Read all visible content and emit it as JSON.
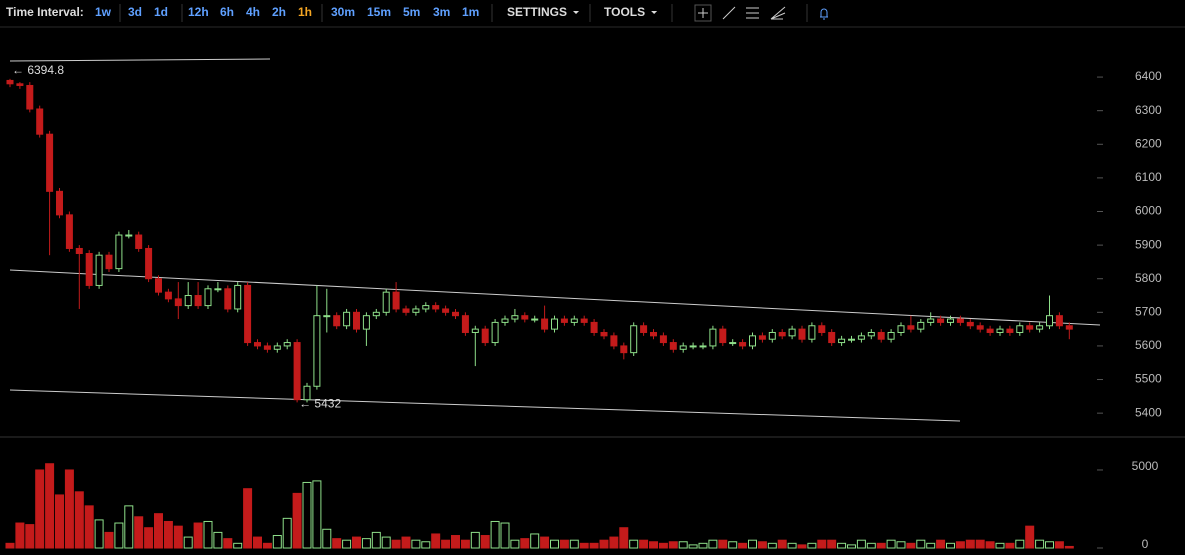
{
  "toolbar": {
    "label": "Time Interval:",
    "intervals": [
      "1w",
      "3d",
      "1d",
      "12h",
      "6h",
      "4h",
      "2h",
      "1h",
      "30m",
      "15m",
      "5m",
      "3m",
      "1m"
    ],
    "active": "1h",
    "menus": [
      "SETTINGS",
      "TOOLS"
    ]
  },
  "chart_data": {
    "type": "candlestick",
    "annotations": [
      "← 6394.8",
      "← 5432"
    ],
    "up_color": "#8fe08a",
    "down_color": "#c41b1b",
    "ylim": [
      5329,
      6549
    ],
    "yticks": [
      5400,
      5500,
      5600,
      5700,
      5800,
      5900,
      6000,
      6100,
      6200,
      6300,
      6400
    ],
    "volume_lim": [
      -320,
      6920
    ],
    "volume_ticks": [
      0,
      5000
    ],
    "open": [
      6390,
      6380,
      6375,
      6305,
      6230,
      6060,
      5990,
      5890,
      5875,
      5780,
      5870,
      5830,
      5930,
      5930,
      5890,
      5800,
      5760,
      5740,
      5720,
      5750,
      5720,
      5770,
      5770,
      5710,
      5780,
      5610,
      5600,
      5590,
      5600,
      5610,
      5440,
      5480,
      5690,
      5690,
      5660,
      5700,
      5650,
      5690,
      5700,
      5760,
      5710,
      5700,
      5710,
      5720,
      5710,
      5700,
      5690,
      5640,
      5650,
      5610,
      5670,
      5680,
      5690,
      5680,
      5680,
      5650,
      5680,
      5670,
      5680,
      5670,
      5640,
      5630,
      5600,
      5580,
      5660,
      5640,
      5630,
      5610,
      5590,
      5600,
      5600,
      5600,
      5650,
      5610,
      5610,
      5600,
      5630,
      5620,
      5640,
      5630,
      5650,
      5620,
      5660,
      5640,
      5610,
      5620,
      5620,
      5630,
      5640,
      5620,
      5640,
      5660,
      5650,
      5670,
      5680,
      5670,
      5680,
      5670,
      5660,
      5650,
      5640,
      5650,
      5640,
      5660,
      5650,
      5660,
      5690,
      5660
    ],
    "high": [
      6394.8,
      6385,
      6385,
      6315,
      6240,
      6070,
      6000,
      5900,
      5885,
      5880,
      5880,
      5940,
      5945,
      5940,
      5900,
      5810,
      5770,
      5790,
      5790,
      5790,
      5780,
      5790,
      5780,
      5790,
      5790,
      5620,
      5610,
      5610,
      5620,
      5620,
      5490,
      5780,
      5770,
      5700,
      5710,
      5710,
      5700,
      5710,
      5770,
      5790,
      5720,
      5720,
      5730,
      5730,
      5720,
      5710,
      5700,
      5660,
      5660,
      5680,
      5690,
      5710,
      5700,
      5690,
      5720,
      5690,
      5690,
      5690,
      5690,
      5680,
      5650,
      5640,
      5610,
      5670,
      5670,
      5650,
      5640,
      5620,
      5610,
      5610,
      5610,
      5660,
      5660,
      5620,
      5620,
      5640,
      5640,
      5650,
      5650,
      5660,
      5660,
      5670,
      5670,
      5650,
      5630,
      5630,
      5640,
      5650,
      5650,
      5650,
      5670,
      5690,
      5680,
      5700,
      5690,
      5690,
      5690,
      5680,
      5670,
      5660,
      5660,
      5660,
      5670,
      5670,
      5670,
      5750,
      5700,
      5670
    ],
    "low": [
      6370,
      6365,
      6295,
      6220,
      5870,
      5980,
      5880,
      5710,
      5770,
      5770,
      5820,
      5820,
      5920,
      5880,
      5790,
      5750,
      5730,
      5680,
      5710,
      5710,
      5710,
      5760,
      5700,
      5700,
      5600,
      5590,
      5580,
      5580,
      5590,
      5432,
      5432,
      5470,
      5640,
      5650,
      5650,
      5640,
      5600,
      5680,
      5690,
      5700,
      5690,
      5690,
      5700,
      5700,
      5690,
      5680,
      5630,
      5540,
      5600,
      5600,
      5660,
      5670,
      5670,
      5670,
      5640,
      5640,
      5660,
      5660,
      5660,
      5630,
      5620,
      5590,
      5560,
      5570,
      5630,
      5620,
      5600,
      5580,
      5580,
      5590,
      5590,
      5590,
      5600,
      5600,
      5590,
      5590,
      5610,
      5610,
      5620,
      5620,
      5610,
      5610,
      5630,
      5600,
      5600,
      5610,
      5610,
      5620,
      5610,
      5610,
      5630,
      5640,
      5640,
      5660,
      5660,
      5660,
      5660,
      5650,
      5640,
      5630,
      5630,
      5630,
      5630,
      5640,
      5640,
      5650,
      5650,
      5620
    ],
    "close": [
      6380,
      6375,
      6305,
      6230,
      6060,
      5990,
      5890,
      5875,
      5780,
      5870,
      5830,
      5930,
      5930,
      5890,
      5800,
      5760,
      5740,
      5720,
      5750,
      5720,
      5770,
      5770,
      5710,
      5780,
      5610,
      5600,
      5590,
      5600,
      5610,
      5440,
      5480,
      5690,
      5690,
      5660,
      5700,
      5650,
      5690,
      5700,
      5760,
      5710,
      5700,
      5710,
      5720,
      5710,
      5700,
      5690,
      5640,
      5650,
      5610,
      5670,
      5680,
      5690,
      5680,
      5680,
      5650,
      5680,
      5670,
      5680,
      5670,
      5640,
      5630,
      5600,
      5580,
      5660,
      5640,
      5630,
      5610,
      5590,
      5600,
      5600,
      5600,
      5650,
      5610,
      5610,
      5600,
      5630,
      5620,
      5640,
      5630,
      5650,
      5620,
      5660,
      5640,
      5610,
      5620,
      5620,
      5630,
      5640,
      5620,
      5640,
      5660,
      5650,
      5670,
      5680,
      5670,
      5680,
      5670,
      5660,
      5650,
      5640,
      5650,
      5640,
      5660,
      5650,
      5660,
      5690,
      5660,
      5650
    ],
    "volume": [
      300,
      1600,
      1500,
      5000,
      5400,
      3400,
      5000,
      3600,
      2700,
      1800,
      1000,
      1600,
      2700,
      2000,
      1300,
      2200,
      1700,
      1400,
      700,
      1600,
      1700,
      1000,
      600,
      300,
      3800,
      700,
      300,
      800,
      1900,
      3500,
      4200,
      4300,
      1200,
      600,
      500,
      700,
      600,
      1000,
      700,
      500,
      700,
      500,
      400,
      900,
      500,
      800,
      500,
      1000,
      800,
      1700,
      1600,
      500,
      600,
      900,
      700,
      500,
      500,
      500,
      300,
      300,
      500,
      700,
      1300,
      500,
      500,
      400,
      300,
      400,
      400,
      200,
      300,
      500,
      500,
      400,
      300,
      500,
      400,
      300,
      500,
      300,
      200,
      300,
      500,
      500,
      300,
      200,
      500,
      300,
      300,
      500,
      400,
      300,
      500,
      300,
      500,
      300,
      400,
      500,
      500,
      400,
      300,
      300,
      500,
      1400,
      500,
      400,
      400,
      100
    ]
  }
}
